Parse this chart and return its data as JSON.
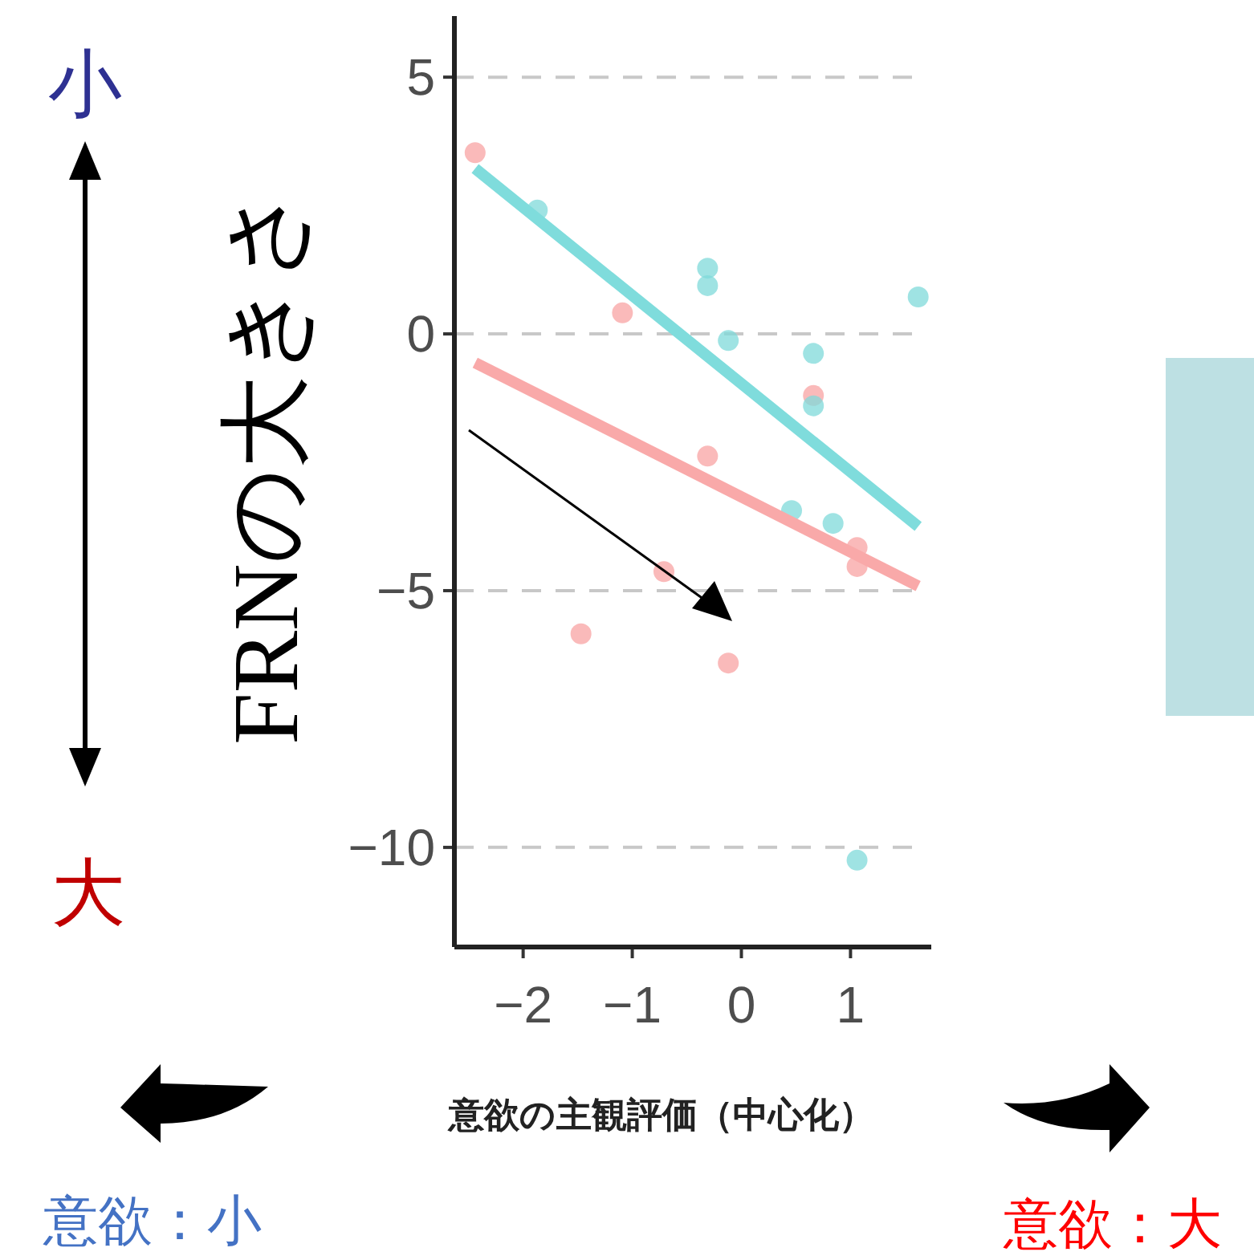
{
  "chart_data": {
    "type": "scatter",
    "ylabel": "FRNの大きさ",
    "xlabel": "意欲の主観評価（中心化）",
    "annotations": [
      "小",
      "大",
      "意欲：小",
      "意欲：大"
    ],
    "xlim": [
      -2.63,
      1.74
    ],
    "ylim": [
      -11.94,
      6.19
    ],
    "xticks": [
      -2,
      -1,
      0,
      1
    ],
    "yticks": [
      -10,
      -5,
      0,
      5
    ],
    "grid": "y",
    "series": [
      {
        "marker": "circle",
        "color": "#f8a3a3",
        "x": [
          -2.44,
          -1.09,
          -0.31,
          -0.71,
          -1.47,
          -0.12,
          1.06,
          1.06,
          0.66
        ],
        "values": [
          3.53,
          0.41,
          -2.38,
          -4.63,
          -5.84,
          -6.41,
          -4.16,
          -4.53,
          -1.2
        ]
      },
      {
        "marker": "circle",
        "color": "#7fd9d9",
        "x": [
          -1.87,
          -0.31,
          -0.31,
          -0.12,
          0.66,
          0.66,
          0.46,
          0.84,
          1.62,
          1.06
        ],
        "values": [
          2.41,
          1.28,
          0.94,
          -0.13,
          -0.38,
          -1.4,
          -3.44,
          -3.69,
          0.72,
          -10.25
        ]
      },
      {
        "type": "line",
        "color": "#7fdcdc",
        "x": [
          -2.44,
          1.62
        ],
        "values": [
          3.22,
          -3.75
        ]
      },
      {
        "type": "line",
        "color": "#f9a9a9",
        "x": [
          -2.44,
          1.62
        ],
        "values": [
          -0.56,
          -4.91
        ]
      }
    ]
  }
}
